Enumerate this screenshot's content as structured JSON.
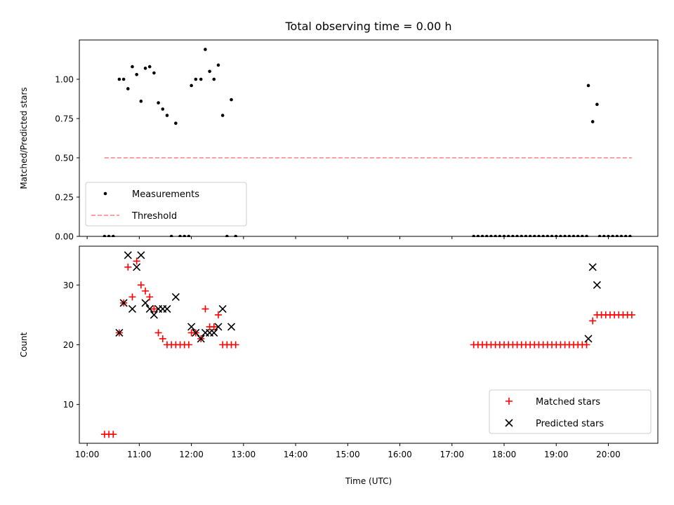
{
  "chart_data": [
    {
      "type": "scatter",
      "title": "Total observing time = 0.00 h",
      "ylabel": "Matched/Predicted stars",
      "xlim": [
        "09:51",
        "20:57"
      ],
      "ylim": [
        0,
        1.25
      ],
      "yticks": [
        "0.00",
        "0.25",
        "0.50",
        "0.75",
        "1.00"
      ],
      "legend": {
        "position": "lower-left",
        "entries": [
          "Measurements",
          "Threshold"
        ]
      },
      "series": [
        {
          "name": "Measurements",
          "style": "point",
          "color": "#000000",
          "points": [
            [
              "10:20",
              0
            ],
            [
              "10:25",
              0
            ],
            [
              "10:30",
              0
            ],
            [
              "10:37",
              1.0
            ],
            [
              "10:42",
              1.0
            ],
            [
              "10:47",
              0.94
            ],
            [
              "10:52",
              1.08
            ],
            [
              "10:57",
              1.03
            ],
            [
              "11:02",
              0.86
            ],
            [
              "11:07",
              1.07
            ],
            [
              "11:12",
              1.08
            ],
            [
              "11:17",
              1.04
            ],
            [
              "11:22",
              0.85
            ],
            [
              "11:27",
              0.81
            ],
            [
              "11:32",
              0.77
            ],
            [
              "11:37",
              0
            ],
            [
              "11:42",
              0.72
            ],
            [
              "11:47",
              0
            ],
            [
              "11:52",
              0
            ],
            [
              "11:57",
              0
            ],
            [
              "12:00",
              0.96
            ],
            [
              "12:05",
              1.0
            ],
            [
              "12:11",
              1.0
            ],
            [
              "12:16",
              1.19
            ],
            [
              "12:21",
              1.05
            ],
            [
              "12:26",
              1.0
            ],
            [
              "12:31",
              1.09
            ],
            [
              "12:36",
              0.77
            ],
            [
              "12:41",
              0
            ],
            [
              "12:46",
              0.87
            ],
            [
              "12:51",
              0
            ],
            [
              "17:25",
              0
            ],
            [
              "17:30",
              0
            ],
            [
              "17:35",
              0
            ],
            [
              "17:40",
              0
            ],
            [
              "17:45",
              0
            ],
            [
              "17:50",
              0
            ],
            [
              "17:55",
              0
            ],
            [
              "18:00",
              0
            ],
            [
              "18:05",
              0
            ],
            [
              "18:10",
              0
            ],
            [
              "18:15",
              0
            ],
            [
              "18:20",
              0
            ],
            [
              "18:25",
              0
            ],
            [
              "18:30",
              0
            ],
            [
              "18:35",
              0
            ],
            [
              "18:40",
              0
            ],
            [
              "18:45",
              0
            ],
            [
              "18:50",
              0
            ],
            [
              "18:55",
              0
            ],
            [
              "19:00",
              0
            ],
            [
              "19:05",
              0
            ],
            [
              "19:10",
              0
            ],
            [
              "19:15",
              0
            ],
            [
              "19:20",
              0
            ],
            [
              "19:25",
              0
            ],
            [
              "19:30",
              0
            ],
            [
              "19:35",
              0
            ],
            [
              "19:37",
              0.96
            ],
            [
              "19:42",
              0.73
            ],
            [
              "19:47",
              0.84
            ],
            [
              "19:50",
              0
            ],
            [
              "19:55",
              0
            ],
            [
              "20:00",
              0
            ],
            [
              "20:05",
              0
            ],
            [
              "20:10",
              0
            ],
            [
              "20:15",
              0
            ],
            [
              "20:20",
              0
            ],
            [
              "20:25",
              0
            ]
          ]
        },
        {
          "name": "Threshold",
          "style": "dashed-line",
          "color": "#ff7f7f",
          "points": [
            [
              "10:20",
              0.5
            ],
            [
              "20:27",
              0.5
            ]
          ]
        }
      ]
    },
    {
      "type": "scatter",
      "xlabel": "Time (UTC)",
      "ylabel": "Count",
      "xlim": [
        "09:51",
        "20:57"
      ],
      "ylim": [
        3.5,
        36.5
      ],
      "yticks": [
        "10",
        "20",
        "30"
      ],
      "xticks": [
        "10:00",
        "11:00",
        "12:00",
        "13:00",
        "14:00",
        "15:00",
        "16:00",
        "17:00",
        "18:00",
        "19:00",
        "20:00"
      ],
      "legend": {
        "position": "lower-right",
        "entries": [
          "Matched stars",
          "Predicted stars"
        ]
      },
      "series": [
        {
          "name": "Matched stars",
          "marker": "plus",
          "color": "#ff0000",
          "points": [
            [
              "10:20",
              5
            ],
            [
              "10:25",
              5
            ],
            [
              "10:30",
              5
            ],
            [
              "10:37",
              22
            ],
            [
              "10:42",
              27
            ],
            [
              "10:47",
              33
            ],
            [
              "10:52",
              28
            ],
            [
              "10:57",
              34
            ],
            [
              "11:02",
              30
            ],
            [
              "11:07",
              29
            ],
            [
              "11:12",
              28
            ],
            [
              "11:17",
              26
            ],
            [
              "11:22",
              22
            ],
            [
              "11:27",
              21
            ],
            [
              "11:32",
              20
            ],
            [
              "11:37",
              20
            ],
            [
              "11:42",
              20
            ],
            [
              "11:47",
              20
            ],
            [
              "11:52",
              20
            ],
            [
              "11:57",
              20
            ],
            [
              "12:00",
              22
            ],
            [
              "12:05",
              22
            ],
            [
              "12:11",
              21
            ],
            [
              "12:16",
              26
            ],
            [
              "12:21",
              23
            ],
            [
              "12:26",
              23
            ],
            [
              "12:31",
              25
            ],
            [
              "12:36",
              20
            ],
            [
              "12:41",
              20
            ],
            [
              "12:46",
              20
            ],
            [
              "12:51",
              20
            ],
            [
              "17:25",
              20
            ],
            [
              "17:30",
              20
            ],
            [
              "17:35",
              20
            ],
            [
              "17:40",
              20
            ],
            [
              "17:45",
              20
            ],
            [
              "17:50",
              20
            ],
            [
              "17:55",
              20
            ],
            [
              "18:00",
              20
            ],
            [
              "18:05",
              20
            ],
            [
              "18:10",
              20
            ],
            [
              "18:15",
              20
            ],
            [
              "18:20",
              20
            ],
            [
              "18:25",
              20
            ],
            [
              "18:30",
              20
            ],
            [
              "18:35",
              20
            ],
            [
              "18:40",
              20
            ],
            [
              "18:45",
              20
            ],
            [
              "18:50",
              20
            ],
            [
              "18:55",
              20
            ],
            [
              "19:00",
              20
            ],
            [
              "19:05",
              20
            ],
            [
              "19:10",
              20
            ],
            [
              "19:15",
              20
            ],
            [
              "19:20",
              20
            ],
            [
              "19:25",
              20
            ],
            [
              "19:30",
              20
            ],
            [
              "19:35",
              20
            ],
            [
              "19:42",
              24
            ],
            [
              "19:47",
              25
            ],
            [
              "19:52",
              25
            ],
            [
              "19:57",
              25
            ],
            [
              "20:02",
              25
            ],
            [
              "20:07",
              25
            ],
            [
              "20:12",
              25
            ],
            [
              "20:17",
              25
            ],
            [
              "20:22",
              25
            ],
            [
              "20:27",
              25
            ]
          ]
        },
        {
          "name": "Predicted stars",
          "marker": "x",
          "color": "#000000",
          "points": [
            [
              "10:37",
              22
            ],
            [
              "10:42",
              27
            ],
            [
              "10:47",
              35
            ],
            [
              "10:52",
              26
            ],
            [
              "10:57",
              33
            ],
            [
              "11:02",
              35
            ],
            [
              "11:07",
              27
            ],
            [
              "11:12",
              26
            ],
            [
              "11:17",
              25
            ],
            [
              "11:22",
              26
            ],
            [
              "11:27",
              26
            ],
            [
              "11:32",
              26
            ],
            [
              "11:42",
              28
            ],
            [
              "12:00",
              23
            ],
            [
              "12:05",
              22
            ],
            [
              "12:11",
              21
            ],
            [
              "12:16",
              22
            ],
            [
              "12:21",
              22
            ],
            [
              "12:26",
              22
            ],
            [
              "12:31",
              23
            ],
            [
              "12:36",
              26
            ],
            [
              "12:46",
              23
            ],
            [
              "19:37",
              21
            ],
            [
              "19:42",
              33
            ],
            [
              "19:47",
              30
            ]
          ]
        }
      ]
    }
  ]
}
